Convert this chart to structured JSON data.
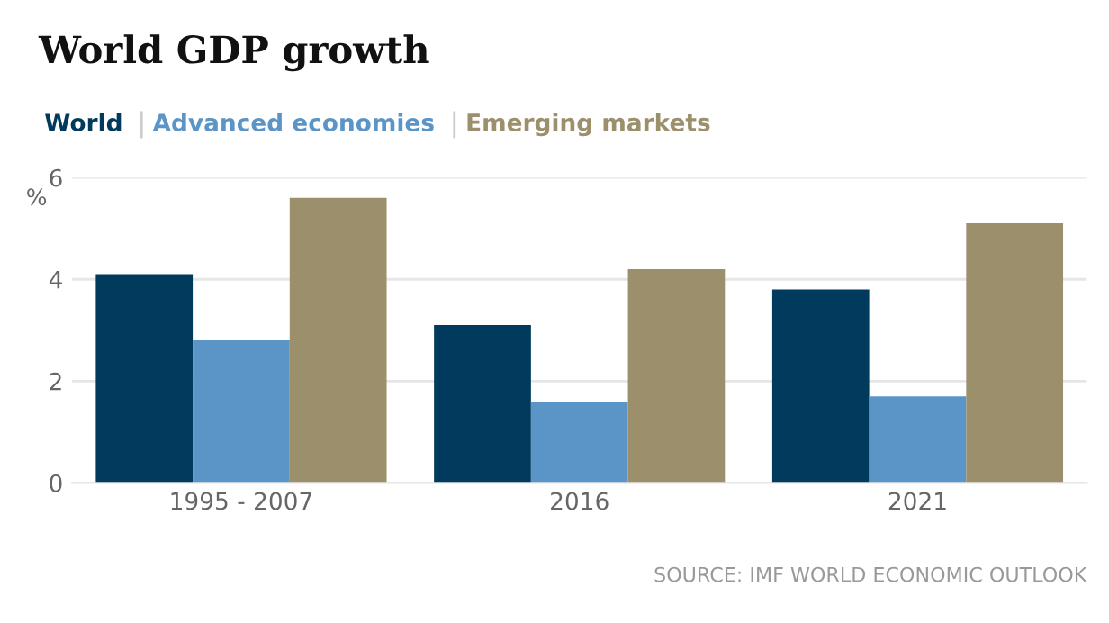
{
  "chart_data": {
    "type": "bar",
    "title": "World GDP growth",
    "ylabel": "%",
    "categories": [
      "1995 - 2007",
      "2016",
      "2021"
    ],
    "series": [
      {
        "name": "World",
        "color": "#003a5d",
        "values": [
          4.1,
          3.1,
          3.8
        ]
      },
      {
        "name": "Advanced economies",
        "color": "#5b95c8",
        "values": [
          2.8,
          1.6,
          1.7
        ]
      },
      {
        "name": "Emerging markets",
        "color": "#9c8f6c",
        "values": [
          5.6,
          4.2,
          5.1
        ]
      }
    ],
    "ylim": [
      0,
      6
    ],
    "yticks": [
      0,
      2,
      4,
      6
    ],
    "grid": "y",
    "legend": "top left",
    "annotations": [
      "SOURCE: IMF WORLD ECONOMIC OUTLOOK"
    ]
  }
}
